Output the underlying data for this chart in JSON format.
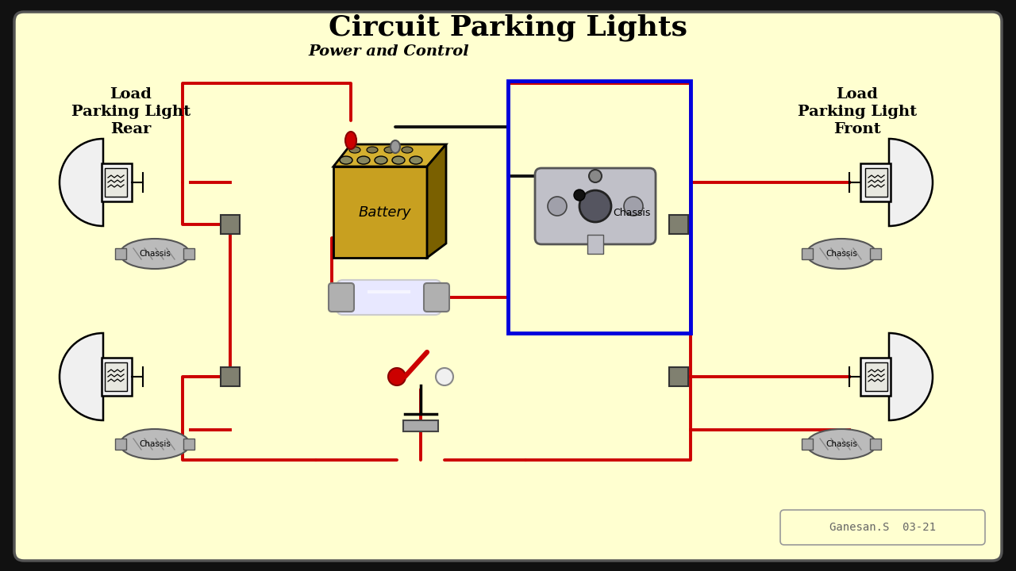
{
  "title": "Circuit Parking Lights",
  "bg_color": "#1a1a1a",
  "panel_bg": "#FFFFD0",
  "title_fontsize": 28,
  "label_rear": "Load\nParking Light\nRear",
  "label_front": "Load\nParking Light\nFront",
  "label_center": "Power and Control",
  "label_battery": "Battery",
  "label_chassis_center": "Chassis",
  "label_chassis": "Chassis",
  "credit": "Ganesan.S  03-21",
  "wire_red": "#CC0000",
  "wire_black": "#111111",
  "wire_blue": "#0000DD",
  "chassis_gray": "#AAAAAA",
  "battery_gold": "#C8A020",
  "battery_dark": "#7A6000",
  "battery_top": "#D4B030",
  "fuse_gray": "#B0B0B0",
  "connector_color": "#808070",
  "switch_red": "#CC0000",
  "switch_white": "#F0F0F0",
  "outer_bg": "#111111"
}
